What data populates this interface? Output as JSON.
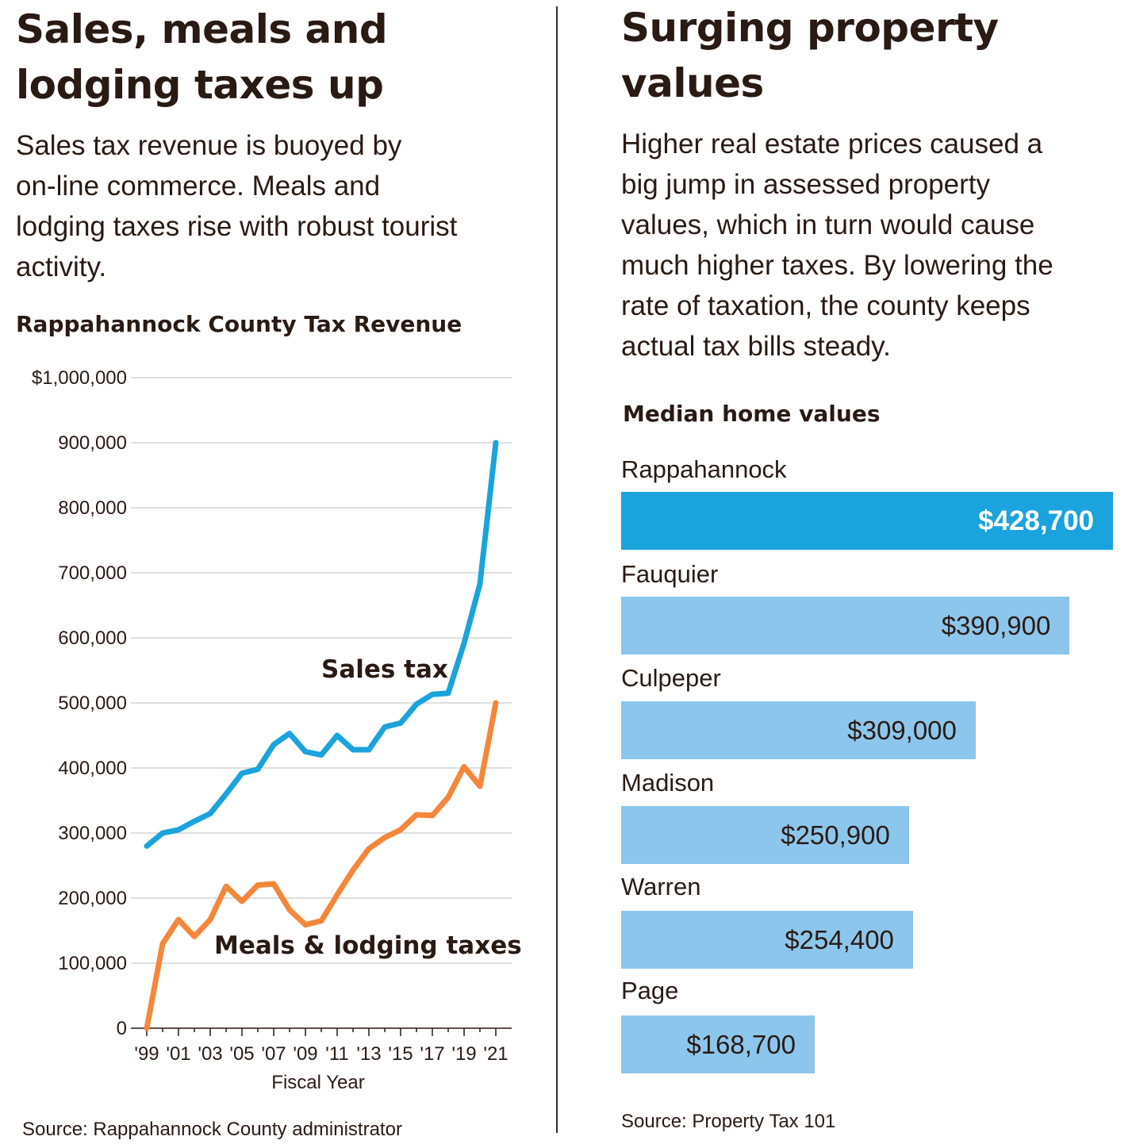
{
  "left": {
    "headline": [
      "Sales, meals and",
      "lodging taxes up"
    ],
    "dek": [
      "Sales tax revenue is buoyed by",
      "on-line commerce. Meals and",
      "lodging taxes rise with robust tourist",
      "activity."
    ],
    "chart_title": "Rappahannock County Tax Revenue",
    "source": "Source: Rappahannock County administrator"
  },
  "right": {
    "headline": [
      "Surging property",
      "values"
    ],
    "dek": [
      "Higher real estate prices caused a",
      "big jump in assessed property",
      "values, which in turn would cause",
      "much higher taxes. By lowering the",
      "rate of taxation, the county keeps",
      "actual tax bills steady."
    ],
    "chart_title": "Median home values",
    "source": "Source: Property Tax 101"
  },
  "colors": {
    "sales": "#1ba3dc",
    "meals": "#f4873a",
    "bar": "#8cc6ec",
    "bar_highlight": "#1aa3dc",
    "grid": "#cccccc"
  },
  "chart_data": [
    {
      "type": "line",
      "title": "Rappahannock County Tax Revenue",
      "xlabel": "Fiscal Year",
      "ylabel": "",
      "ylim": [
        0,
        1000000
      ],
      "y_ticks": [
        0,
        100000,
        200000,
        300000,
        400000,
        500000,
        600000,
        700000,
        800000,
        900000,
        1000000
      ],
      "y_tick_labels": [
        "0",
        "100,000",
        "200,000",
        "300,000",
        "400,000",
        "500,000",
        "600,000",
        "700,000",
        "800,000",
        "900,000",
        "$1,000,000"
      ],
      "x": [
        1999,
        2000,
        2001,
        2002,
        2003,
        2004,
        2005,
        2006,
        2007,
        2008,
        2009,
        2010,
        2011,
        2012,
        2013,
        2014,
        2015,
        2016,
        2017,
        2018,
        2019,
        2020,
        2021
      ],
      "x_tick_labels": [
        "'99",
        "'01",
        "'03",
        "'05",
        "'07",
        "'09",
        "'11",
        "'13",
        "'15",
        "'17",
        "'19",
        "'21"
      ],
      "x_tick_years": [
        1999,
        2001,
        2003,
        2005,
        2007,
        2009,
        2011,
        2013,
        2015,
        2017,
        2019,
        2021
      ],
      "series": [
        {
          "name": "Sales tax",
          "values": [
            280000,
            300000,
            305000,
            318000,
            330000,
            360000,
            392000,
            398000,
            436000,
            453000,
            425000,
            420000,
            450000,
            428000,
            428000,
            463000,
            469000,
            498000,
            513000,
            515000,
            592000,
            683000,
            900000
          ]
        },
        {
          "name": "Meals & lodging taxes",
          "values": [
            0,
            130000,
            167000,
            141000,
            167000,
            218000,
            195000,
            220000,
            222000,
            182000,
            159000,
            165000,
            205000,
            243000,
            276000,
            293000,
            305000,
            328000,
            327000,
            355000,
            402000,
            372000,
            500000
          ]
        }
      ]
    },
    {
      "type": "bar",
      "orientation": "horizontal",
      "title": "Median home values",
      "categories": [
        "Rappahannock",
        "Fauquier",
        "Culpeper",
        "Madison",
        "Warren",
        "Page"
      ],
      "values": [
        428700,
        390900,
        309000,
        250900,
        254400,
        168700
      ],
      "value_labels": [
        "$428,700",
        "$390,900",
        "$309,000",
        "$250,900",
        "$254,400",
        "$168,700"
      ],
      "highlight": "Rappahannock"
    }
  ]
}
